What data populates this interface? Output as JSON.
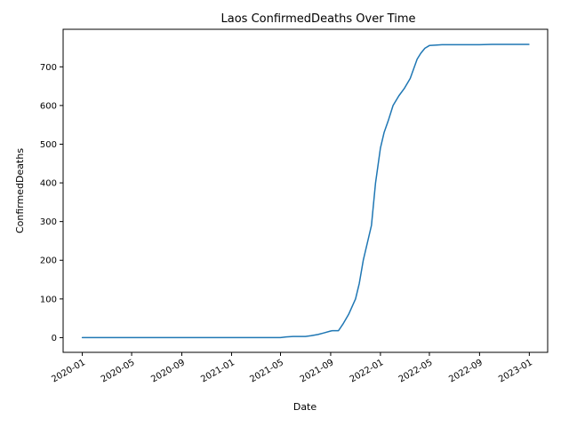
{
  "chart_data": {
    "type": "line",
    "title": "Laos  ConfirmedDeaths Over Time",
    "xlabel": "Date",
    "ylabel": "ConfirmedDeaths",
    "x_ticks": [
      "2020-01",
      "2020-05",
      "2020-09",
      "2021-01",
      "2021-05",
      "2021-09",
      "2022-01",
      "2022-05",
      "2022-09",
      "2023-01"
    ],
    "y_ticks": [
      0,
      100,
      200,
      300,
      400,
      500,
      600,
      700
    ],
    "xlim": [
      "2019-11-15",
      "2023-02-15"
    ],
    "ylim": [
      -38,
      797
    ],
    "grid": false,
    "line_color": "#1f77b4",
    "series": [
      {
        "x": [
          "2020-01-01",
          "2021-05-01",
          "2021-05-15",
          "2021-06-01",
          "2021-07-01",
          "2021-07-15",
          "2021-08-01",
          "2021-08-15",
          "2021-09-01",
          "2021-09-05",
          "2021-09-20",
          "2021-10-01",
          "2021-10-15",
          "2021-11-01",
          "2021-11-10",
          "2021-11-20",
          "2021-12-01",
          "2021-12-10",
          "2021-12-20",
          "2022-01-01",
          "2022-01-10",
          "2022-01-20",
          "2022-02-01",
          "2022-02-15",
          "2022-03-01",
          "2022-03-15",
          "2022-04-01",
          "2022-04-10",
          "2022-04-20",
          "2022-05-01",
          "2022-05-15",
          "2022-06-01",
          "2022-07-01",
          "2022-08-01",
          "2022-09-01",
          "2022-10-01",
          "2022-12-31"
        ],
        "y": [
          0,
          0,
          2,
          3,
          3,
          5,
          8,
          12,
          17,
          18,
          18,
          35,
          60,
          100,
          140,
          200,
          250,
          290,
          400,
          490,
          530,
          560,
          600,
          625,
          645,
          670,
          720,
          735,
          748,
          755,
          756,
          757,
          757,
          757,
          757,
          758,
          758
        ]
      }
    ]
  }
}
